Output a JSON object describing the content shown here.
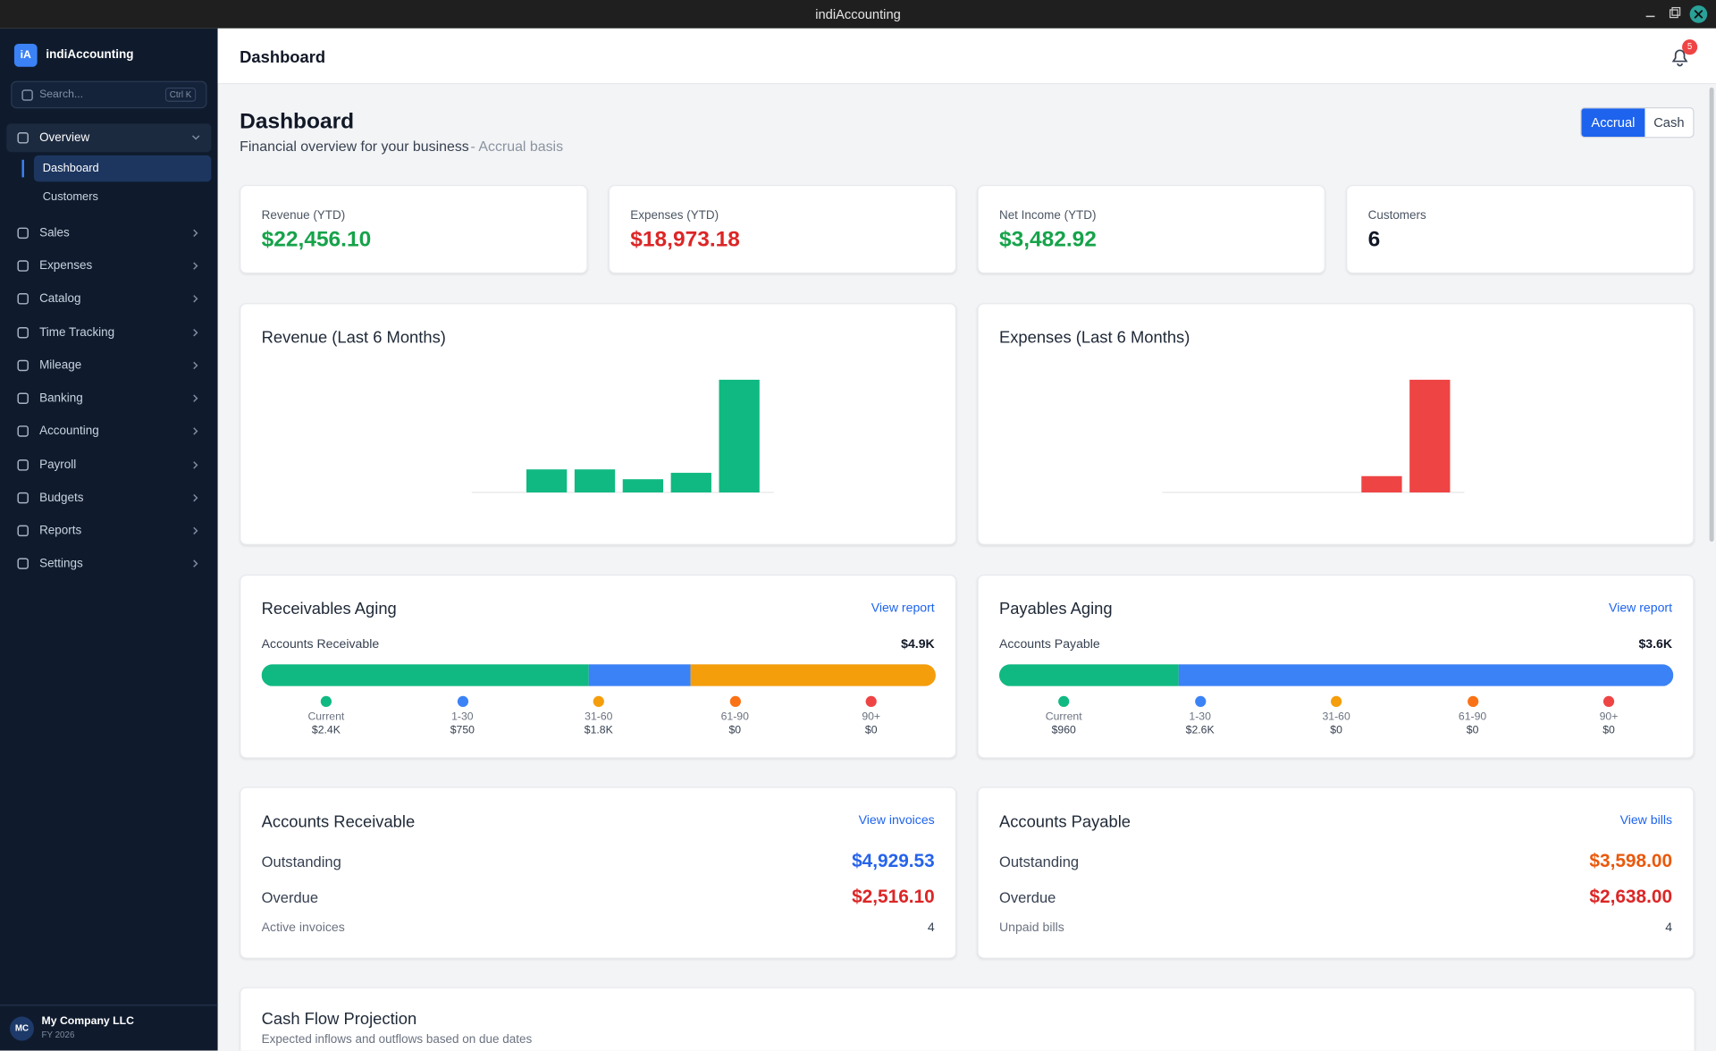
{
  "window_title": "indiAccounting",
  "sidebar": {
    "logo": "iA",
    "app_name": "indiAccounting",
    "search_placeholder": "Search...",
    "search_shortcut": "Ctrl K",
    "nav": [
      "Overview",
      "Sales",
      "Expenses",
      "Catalog",
      "Time Tracking",
      "Mileage",
      "Banking",
      "Accounting",
      "Payroll",
      "Budgets",
      "Reports",
      "Settings"
    ],
    "overview_children": [
      "Dashboard",
      "Customers"
    ],
    "avatar": "MC",
    "company": "My Company LLC",
    "fiscal_year": "FY 2026"
  },
  "header": {
    "title": "Dashboard",
    "notifications": "5"
  },
  "page": {
    "title": "Dashboard",
    "subtitle": "Financial overview for your business",
    "basis": "- Accrual basis",
    "toggle": [
      "Accrual",
      "Cash"
    ]
  },
  "stats": [
    {
      "label": "Revenue (YTD)",
      "value": "$22,456.10",
      "color": "#16a34a"
    },
    {
      "label": "Expenses (YTD)",
      "value": "$18,973.18",
      "color": "#dc2626"
    },
    {
      "label": "Net Income (YTD)",
      "value": "$3,482.92",
      "color": "#16a34a"
    },
    {
      "label": "Customers",
      "value": "6",
      "color": "#111827"
    }
  ],
  "charts": [
    {
      "type": "bar",
      "title": "Revenue (Last 6 Months)",
      "values": [
        0,
        2700,
        2700,
        1550,
        2300,
        13200
      ],
      "color": "#10b981"
    },
    {
      "type": "bar",
      "title": "Expenses (Last 6 Months)",
      "values": [
        0,
        0,
        0,
        0,
        2400,
        16570
      ],
      "color": "#ef4444"
    }
  ],
  "aging": [
    {
      "title": "Receivables Aging",
      "link": "View report",
      "label": "Accounts Receivable",
      "total": "$4.9K",
      "buckets": [
        {
          "name": "Current",
          "value": 2400,
          "value_label": "$2.4K",
          "color": "#10b981"
        },
        {
          "name": "1-30",
          "value": 750,
          "value_label": "$750",
          "color": "#3b82f6"
        },
        {
          "name": "31-60",
          "value": 1800,
          "value_label": "$1.8K",
          "color": "#f59e0b"
        },
        {
          "name": "61-90",
          "value": 0,
          "value_label": "$0",
          "color": "#f97316"
        },
        {
          "name": "90+",
          "value": 0,
          "value_label": "$0",
          "color": "#ef4444"
        }
      ]
    },
    {
      "title": "Payables Aging",
      "link": "View report",
      "label": "Accounts Payable",
      "total": "$3.6K",
      "buckets": [
        {
          "name": "Current",
          "value": 960,
          "value_label": "$960",
          "color": "#10b981"
        },
        {
          "name": "1-30",
          "value": 2638,
          "value_label": "$2.6K",
          "color": "#3b82f6"
        },
        {
          "name": "31-60",
          "value": 0,
          "value_label": "$0",
          "color": "#f59e0b"
        },
        {
          "name": "61-90",
          "value": 0,
          "value_label": "$0",
          "color": "#f97316"
        },
        {
          "name": "90+",
          "value": 0,
          "value_label": "$0",
          "color": "#ef4444"
        }
      ]
    }
  ],
  "balances": [
    {
      "title": "Accounts Receivable",
      "link": "View invoices",
      "rows": [
        {
          "label": "Outstanding",
          "value": "$4,929.53",
          "color": "#2563eb"
        },
        {
          "label": "Overdue",
          "value": "$2,516.10",
          "color": "#dc2626"
        }
      ],
      "count_label": "Active invoices",
      "count": "4"
    },
    {
      "title": "Accounts Payable",
      "link": "View bills",
      "rows": [
        {
          "label": "Outstanding",
          "value": "$3,598.00",
          "color": "#ea580c"
        },
        {
          "label": "Overdue",
          "value": "$2,638.00",
          "color": "#dc2626"
        }
      ],
      "count_label": "Unpaid bills",
      "count": "4"
    }
  ],
  "cash_flow": {
    "title": "Cash Flow Projection",
    "subtitle": "Expected inflows and outflows based on due dates"
  }
}
